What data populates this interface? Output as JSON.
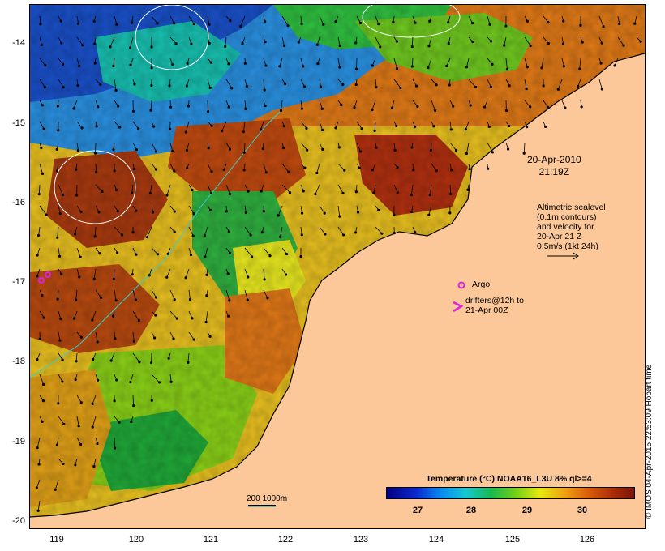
{
  "map": {
    "y_ticks": [
      "-14",
      "-15",
      "-16",
      "-17",
      "-18",
      "-19",
      "-20"
    ],
    "x_ticks": [
      "119",
      "120",
      "121",
      "122",
      "123",
      "124",
      "125",
      "126"
    ],
    "date": "20-Apr-2010",
    "time": "21:19Z",
    "altimetry_note": [
      "Altimetric sealevel",
      "(0.1m contours)",
      "and velocity for",
      "20-Apr 21 Z",
      "0.5m/s (1kt 24h)"
    ],
    "argo_label": "Argo",
    "drifters_label": [
      "drifters@12h to",
      "21-Apr 00Z"
    ],
    "scale_label": "200  1000m",
    "credit": "© IMOS 04-Apr-2015 22:53:09 Hobart time",
    "colorbar": {
      "title": "Temperature (°C) NOAA16_L3U 8% ql>=4",
      "ticks": [
        "27",
        "28",
        "29",
        "30"
      ],
      "range": [
        26.1,
        30.9
      ]
    },
    "colors": {
      "land": "#fcc89a",
      "argo": "#e020e0",
      "contour": "#ffffff",
      "isobath": "#35d0d0"
    }
  }
}
